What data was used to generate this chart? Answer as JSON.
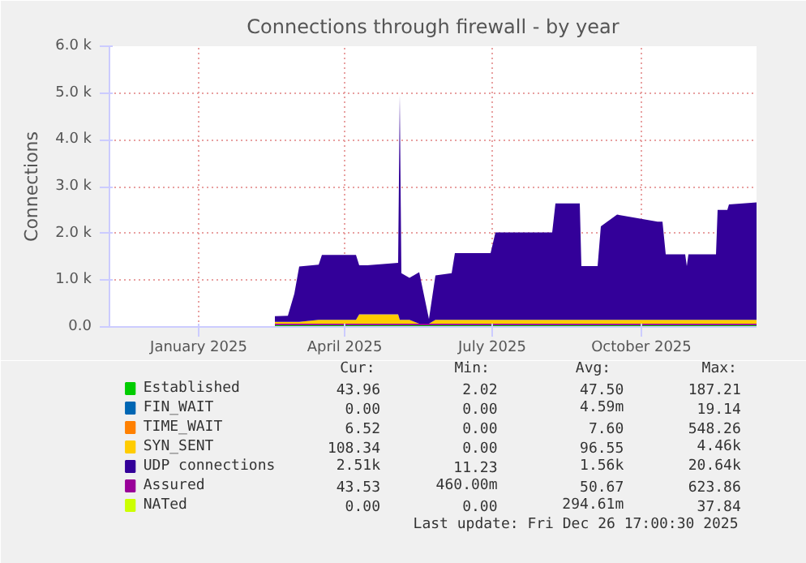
{
  "chart_data": {
    "type": "area",
    "stacked": true,
    "title": "Connections through firewall - by year",
    "ylabel": "Connections",
    "x": [
      "2025-03-04",
      "2025-03-12",
      "2025-03-16",
      "2025-03-19",
      "2025-03-31",
      "2025-04-02",
      "2025-04-23",
      "2025-04-25",
      "2025-04-30",
      "2025-05-19",
      "2025-05-20",
      "2025-05-21",
      "2025-05-26",
      "2025-06-01",
      "2025-06-07",
      "2025-06-11",
      "2025-06-21",
      "2025-06-23",
      "2025-07-15",
      "2025-07-18",
      "2025-08-22",
      "2025-08-24",
      "2025-09-08",
      "2025-09-09",
      "2025-09-19",
      "2025-09-21",
      "2025-10-01",
      "2025-10-26",
      "2025-10-29",
      "2025-10-31",
      "2025-11-12",
      "2025-11-13",
      "2025-11-14",
      "2025-12-01",
      "2025-12-02",
      "2025-12-08",
      "2025-12-09",
      "2025-12-26"
    ],
    "series": [
      {
        "name": "Established",
        "color": "#00cc00",
        "values": [
          50,
          50,
          50,
          50,
          50,
          50,
          50,
          50,
          50,
          50,
          50,
          50,
          50,
          50,
          50,
          50,
          50,
          50,
          50,
          50,
          50,
          50,
          50,
          50,
          50,
          50,
          50,
          50,
          50,
          50,
          50,
          50,
          50,
          50,
          50,
          50,
          50,
          50
        ]
      },
      {
        "name": "FIN_WAIT",
        "color": "#0066b3",
        "values": [
          null,
          null,
          null,
          null,
          null,
          null,
          null,
          null,
          null,
          null,
          null,
          null,
          null,
          null,
          null,
          null,
          null,
          null,
          null,
          null,
          null,
          null,
          null,
          null,
          null,
          null,
          null,
          null,
          null,
          null,
          null,
          null,
          null,
          null,
          null,
          null,
          null,
          null
        ]
      },
      {
        "name": "TIME_WAIT",
        "color": "#ff8000",
        "values": [
          null,
          null,
          null,
          null,
          null,
          null,
          null,
          null,
          null,
          null,
          null,
          null,
          null,
          null,
          null,
          null,
          null,
          null,
          null,
          null,
          null,
          null,
          null,
          null,
          null,
          null,
          null,
          null,
          null,
          null,
          null,
          null,
          null,
          null,
          null,
          null,
          null,
          null
        ]
      },
      {
        "name": "SYN_SENT",
        "color": "#ffcc00",
        "values": [
          60,
          60,
          60,
          60,
          100,
          100,
          100,
          220,
          220,
          220,
          100,
          100,
          100,
          20,
          20,
          100,
          100,
          100,
          100,
          100,
          100,
          100,
          100,
          100,
          100,
          100,
          100,
          100,
          100,
          100,
          100,
          100,
          100,
          100,
          100,
          100,
          100,
          100
        ]
      },
      {
        "name": "UDP connections",
        "color": "#330099",
        "values": [
          120,
          130,
          600,
          1180,
          1180,
          1390,
          1390,
          1050,
          1050,
          1100,
          4800,
          1000,
          900,
          1100,
          100,
          950,
          1000,
          1430,
          1430,
          1870,
          1870,
          2490,
          2490,
          1150,
          1150,
          2000,
          2250,
          2100,
          2100,
          1400,
          1400,
          1150,
          1400,
          1400,
          2350,
          2350,
          2470,
          2510
        ]
      },
      {
        "name": "Assured",
        "color": "#990099",
        "type": "line",
        "values": [
          50,
          50,
          50,
          50,
          50,
          50,
          50,
          50,
          50,
          50,
          50,
          50,
          50,
          50,
          50,
          50,
          50,
          50,
          50,
          50,
          50,
          50,
          50,
          50,
          50,
          50,
          50,
          50,
          50,
          50,
          50,
          50,
          50,
          50,
          50,
          50,
          50,
          50
        ]
      },
      {
        "name": "NATed",
        "color": "#ccff00",
        "type": "line",
        "values": [
          null,
          null,
          null,
          null,
          null,
          null,
          null,
          null,
          null,
          null,
          null,
          null,
          null,
          null,
          null,
          null,
          null,
          null,
          null,
          null,
          null,
          null,
          null,
          null,
          null,
          null,
          null,
          null,
          null,
          null,
          null,
          null,
          null,
          null,
          null,
          null,
          null,
          null
        ]
      }
    ],
    "xlim": [
      "2024-11-22",
      "2025-12-26"
    ],
    "xticks": [
      {
        "value": "2025-01-16",
        "label": "January 2025"
      },
      {
        "value": "2025-04-16",
        "label": "April 2025"
      },
      {
        "value": "2025-07-16",
        "label": "July 2025"
      },
      {
        "value": "2025-10-16",
        "label": "October 2025"
      }
    ],
    "ylim": [
      0,
      6000
    ],
    "yticks": [
      {
        "value": 0,
        "label": "0.0"
      },
      {
        "value": 1000,
        "label": "1.0 k"
      },
      {
        "value": 2000,
        "label": "2.0 k"
      },
      {
        "value": 3000,
        "label": "3.0 k"
      },
      {
        "value": 4000,
        "label": "4.0 k"
      },
      {
        "value": 5000,
        "label": "5.0 k"
      },
      {
        "value": 6000,
        "label": "6.0 k"
      }
    ],
    "grid": true,
    "legend": "bottom",
    "annotations": [
      "Cur:",
      "Min:",
      "Avg:",
      "Max:",
      "43.96",
      "2.02",
      "47.50",
      "187.21",
      "0.00",
      "0.00",
      "4.59m",
      "19.14",
      "6.52",
      "0.00",
      "7.60",
      "548.26",
      "108.34",
      "0.00",
      "96.55",
      "4.46k",
      "2.51k",
      "11.23",
      "1.56k",
      "20.64k",
      "43.53",
      "460.00m",
      "50.67",
      "623.86",
      "0.00",
      "0.00",
      "294.61m",
      "37.84",
      "Last update: Fri Dec 26 17:00:30 2025"
    ]
  }
}
